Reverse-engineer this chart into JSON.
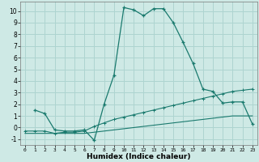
{
  "title": "",
  "xlabel": "Humidex (Indice chaleur)",
  "ylabel": "",
  "bg_color": "#cee9e5",
  "grid_color": "#aed4d0",
  "line_color": "#1a7a6e",
  "xlim": [
    -0.5,
    23.5
  ],
  "ylim": [
    -1.5,
    10.8
  ],
  "yticks": [
    -1,
    0,
    1,
    2,
    3,
    4,
    5,
    6,
    7,
    8,
    9,
    10
  ],
  "xticks": [
    0,
    1,
    2,
    3,
    4,
    5,
    6,
    7,
    8,
    9,
    10,
    11,
    12,
    13,
    14,
    15,
    16,
    17,
    18,
    19,
    20,
    21,
    22,
    23
  ],
  "curve1_x": [
    1,
    2,
    3,
    4,
    5,
    6,
    7,
    8,
    9,
    10,
    11,
    12,
    13,
    14,
    15,
    16,
    17,
    18,
    19,
    20,
    21,
    22,
    23
  ],
  "curve1_y": [
    1.5,
    1.2,
    -0.2,
    -0.3,
    -0.3,
    -0.2,
    -1.1,
    2.0,
    4.5,
    10.3,
    10.1,
    9.6,
    10.2,
    10.2,
    9.0,
    7.3,
    5.5,
    3.3,
    3.1,
    2.1,
    2.2,
    2.2,
    0.3
  ],
  "curve2_x": [
    0,
    1,
    2,
    3,
    4,
    5,
    6,
    7,
    8,
    9,
    10,
    11,
    12,
    13,
    14,
    15,
    16,
    17,
    18,
    19,
    20,
    21,
    22,
    23
  ],
  "curve2_y": [
    -0.3,
    -0.3,
    -0.3,
    -0.5,
    -0.4,
    -0.4,
    -0.3,
    0.1,
    0.4,
    0.7,
    0.9,
    1.1,
    1.3,
    1.5,
    1.7,
    1.9,
    2.1,
    2.3,
    2.5,
    2.7,
    2.9,
    3.1,
    3.2,
    3.3
  ],
  "curve3_x": [
    0,
    1,
    2,
    3,
    4,
    5,
    6,
    7,
    8,
    9,
    10,
    11,
    12,
    13,
    14,
    15,
    16,
    17,
    18,
    19,
    20,
    21,
    22,
    23
  ],
  "curve3_y": [
    -0.5,
    -0.5,
    -0.5,
    -0.5,
    -0.5,
    -0.5,
    -0.5,
    -0.4,
    -0.3,
    -0.2,
    -0.1,
    0.0,
    0.1,
    0.2,
    0.3,
    0.4,
    0.5,
    0.6,
    0.7,
    0.8,
    0.9,
    1.0,
    1.0,
    1.0
  ]
}
